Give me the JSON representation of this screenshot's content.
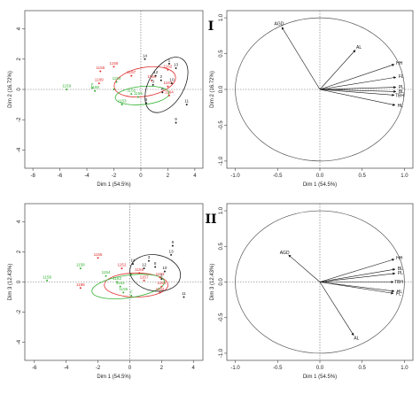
{
  "colors": {
    "black": "#222222",
    "red": "#e03030",
    "green": "#33b233",
    "axis": "#444444"
  },
  "chart_data": [
    {
      "id": "ind1",
      "type": "scatter",
      "title": "",
      "xlabel": "Dim 1 (54.5%)",
      "ylabel": "Dim 2 (16.72%)",
      "xlim": [
        -8.6,
        4.6
      ],
      "ylim": [
        -5.2,
        5.2
      ],
      "xticks": [
        "-8",
        "-6",
        "-4",
        "-2",
        "0",
        "2",
        "4"
      ],
      "yticks": [
        "-4",
        "-2",
        "0",
        "2",
        "4"
      ],
      "points": [
        {
          "x": -5.5,
          "y": 0.0,
          "label": "1159",
          "color": "green"
        },
        {
          "x": -3.4,
          "y": -0.1,
          "label": "1160",
          "color": "green"
        },
        {
          "x": -3.6,
          "y": 0.1,
          "label": "F",
          "color": "green"
        },
        {
          "x": -2.0,
          "y": 0.0,
          "label": "",
          "color": "green"
        },
        {
          "x": -1.4,
          "y": -1.0,
          "label": "1153",
          "color": "green"
        },
        {
          "x": -1.8,
          "y": 0.5,
          "label": "1154",
          "color": "green"
        },
        {
          "x": -0.7,
          "y": -0.3,
          "label": "1152",
          "color": "green"
        },
        {
          "x": -0.2,
          "y": -0.5,
          "label": "1156",
          "color": "green"
        },
        {
          "x": -2.0,
          "y": 1.5,
          "label": "1155",
          "color": "red"
        },
        {
          "x": -3.0,
          "y": 1.2,
          "label": "1156",
          "color": "red"
        },
        {
          "x": -3.1,
          "y": 0.4,
          "label": "1189",
          "color": "red"
        },
        {
          "x": -0.7,
          "y": 0.9,
          "label": "1157",
          "color": "red"
        },
        {
          "x": 0.8,
          "y": 0.6,
          "label": "1158",
          "color": "red"
        },
        {
          "x": 2.0,
          "y": 1.3,
          "label": "1162",
          "color": "red"
        },
        {
          "x": 2.0,
          "y": 0.2,
          "label": "1163",
          "color": "red"
        },
        {
          "x": 2.1,
          "y": -0.4,
          "label": "1164",
          "color": "red"
        },
        {
          "x": 0.3,
          "y": 2.0,
          "label": "14",
          "color": "black"
        },
        {
          "x": 2.1,
          "y": 1.7,
          "label": "1",
          "color": "black"
        },
        {
          "x": 2.6,
          "y": 1.4,
          "label": "13",
          "color": "black"
        },
        {
          "x": 1.1,
          "y": 0.9,
          "label": "12",
          "color": "black"
        },
        {
          "x": 1.5,
          "y": 0.6,
          "label": "2",
          "color": "black"
        },
        {
          "x": 2.3,
          "y": 0.4,
          "label": "10",
          "color": "black"
        },
        {
          "x": 0.9,
          "y": 0.3,
          "label": "3",
          "color": "black"
        },
        {
          "x": 1.6,
          "y": -0.2,
          "label": "8",
          "color": "black"
        },
        {
          "x": 0.4,
          "y": -0.9,
          "label": "6",
          "color": "black"
        },
        {
          "x": 3.4,
          "y": -1.0,
          "label": "11",
          "color": "black"
        },
        {
          "x": 2.6,
          "y": -2.2,
          "label": "9",
          "color": "black"
        }
      ],
      "ellipses": [
        {
          "cx": 0.3,
          "cy": 0.5,
          "rx": 2.3,
          "ry": 0.95,
          "angle": 10,
          "color": "red"
        },
        {
          "cx": 0.1,
          "cy": -0.4,
          "rx": 2.0,
          "ry": 0.6,
          "angle": 5,
          "color": "green"
        },
        {
          "cx": 1.9,
          "cy": 0.3,
          "rx": 1.3,
          "ry": 2.0,
          "angle": -30,
          "color": "black"
        }
      ]
    },
    {
      "id": "var1",
      "type": "vectors",
      "label": "I",
      "title": "",
      "xlabel": "Dim 1 (54.5%)",
      "ylabel": "Dim 2 (16.72%)",
      "xlim": [
        -1.1,
        1.1
      ],
      "ylim": [
        -1.1,
        1.1
      ],
      "xticks": [
        "-1.0",
        "-0.5",
        "0.0",
        "0.5",
        "1.0"
      ],
      "yticks": [
        "-1.0",
        "-0.5",
        "0.0",
        "0.5",
        "1.0"
      ],
      "vectors": [
        {
          "name": "AGD",
          "x": -0.45,
          "y": 0.87
        },
        {
          "name": "AL",
          "x": 0.42,
          "y": 0.55
        },
        {
          "name": "HH",
          "x": 0.88,
          "y": 0.35
        },
        {
          "name": "FL",
          "x": 0.9,
          "y": 0.17
        },
        {
          "name": "PL",
          "x": 0.9,
          "y": 0.03
        },
        {
          "name": "BL",
          "x": 0.9,
          "y": -0.03
        },
        {
          "name": "TBH",
          "x": 0.88,
          "y": -0.08
        },
        {
          "name": "HL",
          "x": 0.89,
          "y": -0.22
        }
      ]
    },
    {
      "id": "ind2",
      "type": "scatter",
      "title": "",
      "xlabel": "Dim 1 (54.5%)",
      "ylabel": "Dim 3 (12.43%)",
      "xlim": [
        -6.6,
        4.6
      ],
      "ylim": [
        -5.2,
        5.2
      ],
      "xticks": [
        "-6",
        "-4",
        "-2",
        "0",
        "2",
        "4"
      ],
      "yticks": [
        "-4",
        "-2",
        "0",
        "2",
        "4"
      ],
      "points": [
        {
          "x": -5.2,
          "y": 0.1,
          "label": "1159",
          "color": "green"
        },
        {
          "x": -3.1,
          "y": 0.9,
          "label": "1158",
          "color": "green"
        },
        {
          "x": -1.5,
          "y": 0.4,
          "label": "1154",
          "color": "green"
        },
        {
          "x": -0.8,
          "y": 0.0,
          "label": "1162",
          "color": "green"
        },
        {
          "x": -0.6,
          "y": -0.3,
          "label": "1153",
          "color": "green"
        },
        {
          "x": -0.4,
          "y": -0.7,
          "label": "1156",
          "color": "green"
        },
        {
          "x": 0.1,
          "y": -0.9,
          "label": "F",
          "color": "green"
        },
        {
          "x": 0.1,
          "y": 0.5,
          "label": "",
          "color": "green"
        },
        {
          "x": -2.0,
          "y": 1.6,
          "label": "1155",
          "color": "red"
        },
        {
          "x": -3.1,
          "y": -0.4,
          "label": "1188",
          "color": "red"
        },
        {
          "x": -0.5,
          "y": 0.9,
          "label": "1152",
          "color": "red"
        },
        {
          "x": 0.6,
          "y": 0.6,
          "label": "1156",
          "color": "red"
        },
        {
          "x": 0.9,
          "y": 0.1,
          "label": "1157",
          "color": "red"
        },
        {
          "x": 1.9,
          "y": 0.3,
          "label": "1163",
          "color": "red"
        },
        {
          "x": 2.0,
          "y": -0.3,
          "label": "1164",
          "color": "red"
        },
        {
          "x": 1.9,
          "y": -0.7,
          "label": "1162",
          "color": "red"
        },
        {
          "x": 2.7,
          "y": 2.4,
          "label": "8",
          "color": "black"
        },
        {
          "x": 2.6,
          "y": 1.8,
          "label": "13",
          "color": "black"
        },
        {
          "x": 0.2,
          "y": 1.2,
          "label": "14",
          "color": "black"
        },
        {
          "x": 1.2,
          "y": 1.4,
          "label": "3",
          "color": "black"
        },
        {
          "x": 1.6,
          "y": 1.0,
          "label": "8",
          "color": "black"
        },
        {
          "x": 0.9,
          "y": 0.9,
          "label": "12",
          "color": "black"
        },
        {
          "x": 2.2,
          "y": 0.7,
          "label": "10",
          "color": "black"
        },
        {
          "x": 2.0,
          "y": 0.2,
          "label": "2",
          "color": "black"
        },
        {
          "x": 3.4,
          "y": -1.0,
          "label": "11",
          "color": "black"
        }
      ],
      "ellipses": [
        {
          "cx": 0.4,
          "cy": -0.2,
          "rx": 2.0,
          "ry": 0.8,
          "angle": 0,
          "color": "red"
        },
        {
          "cx": -0.1,
          "cy": -0.3,
          "rx": 2.3,
          "ry": 0.75,
          "angle": 8,
          "color": "green"
        },
        {
          "cx": 1.6,
          "cy": 0.6,
          "rx": 1.6,
          "ry": 1.2,
          "angle": -10,
          "color": "black"
        }
      ]
    },
    {
      "id": "var2",
      "type": "vectors",
      "label": "II",
      "title": "",
      "xlabel": "Dim 1 (54.5%)",
      "ylabel": "Dim 3 (12.43%)",
      "xlim": [
        -1.1,
        1.1
      ],
      "ylim": [
        -1.1,
        1.1
      ],
      "xticks": [
        "-1.0",
        "-0.5",
        "0.0",
        "0.5",
        "1.0"
      ],
      "yticks": [
        "-1.0",
        "-0.5",
        "0.0",
        "0.5",
        "1.0"
      ],
      "vectors": [
        {
          "name": "AGD",
          "x": -0.37,
          "y": 0.38
        },
        {
          "name": "AL",
          "x": 0.4,
          "y": -0.75
        },
        {
          "name": "HH",
          "x": 0.88,
          "y": 0.32
        },
        {
          "name": "BL",
          "x": 0.89,
          "y": 0.18
        },
        {
          "name": "PL",
          "x": 0.89,
          "y": 0.12
        },
        {
          "name": "TBH",
          "x": 0.87,
          "y": 0.0
        },
        {
          "name": "HL",
          "x": 0.88,
          "y": -0.13
        },
        {
          "name": "FL",
          "x": 0.87,
          "y": -0.16
        }
      ]
    }
  ]
}
